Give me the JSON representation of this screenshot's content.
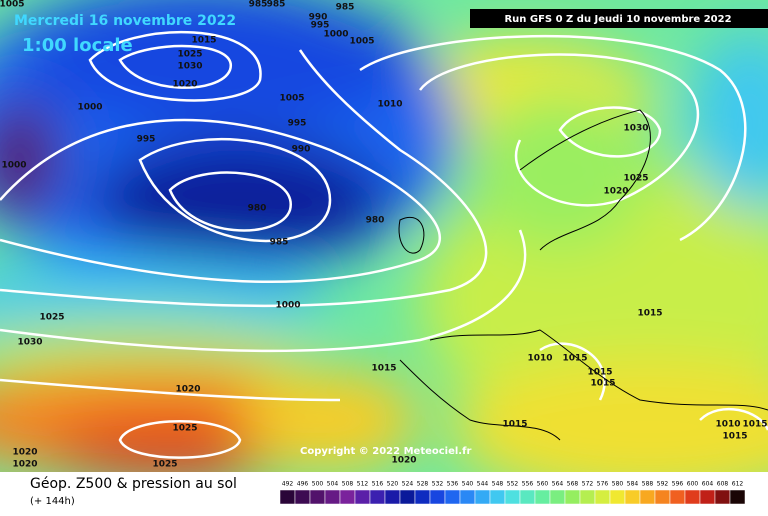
{
  "header": {
    "date": "Mercredi 16 novembre 2022",
    "time": "1:00 locale",
    "run": "Run GFS 0 Z du Jeudi 10 novembre 2022"
  },
  "copyright": "Copyright © 2022 Meteociel.fr",
  "footer": {
    "title": "Géop. Z500 & pression au sol",
    "lead": "(+ 144h)"
  },
  "legend": {
    "labels": [
      "492",
      "496",
      "500",
      "504",
      "508",
      "512",
      "516",
      "520",
      "524",
      "528",
      "532",
      "536",
      "540",
      "544",
      "548",
      "552",
      "556",
      "560",
      "564",
      "568",
      "572",
      "576",
      "580",
      "584",
      "588",
      "592",
      "596",
      "600",
      "604",
      "608",
      "612"
    ],
    "colors": [
      "#2a0538",
      "#3d0b52",
      "#52126b",
      "#661a85",
      "#7a229c",
      "#5b1fa8",
      "#3b20b0",
      "#1a1aa8",
      "#0a1a9a",
      "#0f2cc0",
      "#1846e0",
      "#1f66f0",
      "#2a88f5",
      "#34aaf5",
      "#40c8f0",
      "#4ee0e0",
      "#5ae8c0",
      "#66eea0",
      "#7aee80",
      "#95ee60",
      "#b5ee50",
      "#d5ee40",
      "#f0e830",
      "#f8cc28",
      "#f8a820",
      "#f58420",
      "#f06020",
      "#e03c1c",
      "#c02018",
      "#801010",
      "#1a0505"
    ]
  },
  "isobar_labels": [
    "1005",
    "985",
    "985",
    "985",
    "990",
    "995",
    "1000",
    "1005",
    "1015",
    "1025",
    "1030",
    "1020",
    "1000",
    "1005",
    "1010",
    "995",
    "995",
    "990",
    "1000",
    "980",
    "980",
    "985",
    "1030",
    "1025",
    "1020",
    "1000",
    "1025",
    "1030",
    "1015",
    "1010",
    "1015",
    "1015",
    "1015",
    "1015",
    "1020",
    "1025",
    "1015",
    "1010",
    "1015",
    "1015",
    "1020",
    "1020",
    "1025",
    "1020"
  ]
}
